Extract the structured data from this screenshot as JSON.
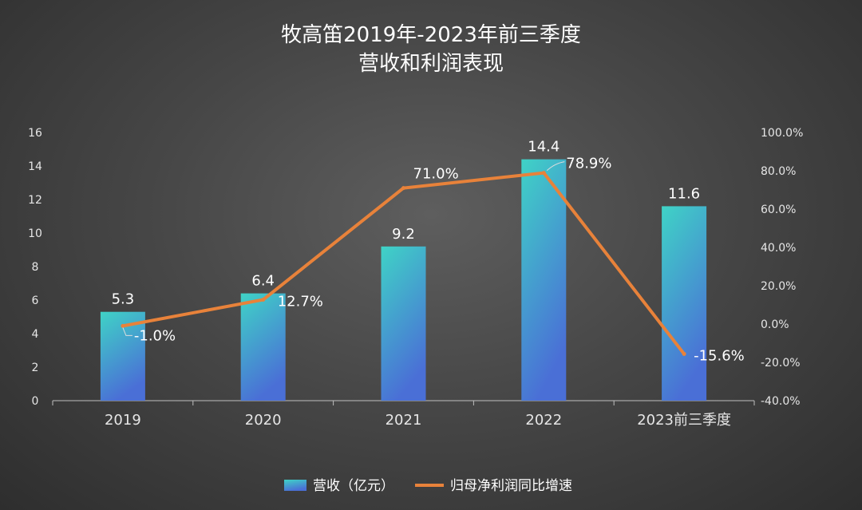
{
  "chart_data": {
    "type": "bar+line",
    "title_line1": "牧高笛2019年-2023年前三季度",
    "title_line2": "营收和利润表现",
    "categories": [
      "2019",
      "2020",
      "2021",
      "2022",
      "2023前三季度"
    ],
    "series": [
      {
        "name": "营收（亿元）",
        "type": "bar",
        "axis": "left",
        "values": [
          5.3,
          6.4,
          9.2,
          14.4,
          11.6
        ],
        "labels": [
          "5.3",
          "6.4",
          "9.2",
          "14.4",
          "11.6"
        ]
      },
      {
        "name": "归母净利润同比增速",
        "type": "line",
        "axis": "right",
        "values": [
          -1.0,
          12.7,
          71.0,
          78.9,
          -15.6
        ],
        "labels": [
          "-1.0%",
          "12.7%",
          "71.0%",
          "78.9%",
          "-15.6%"
        ]
      }
    ],
    "y_left": {
      "min": 0,
      "max": 16,
      "ticks": [
        "0",
        "2",
        "4",
        "6",
        "8",
        "10",
        "12",
        "14",
        "16"
      ]
    },
    "y_right": {
      "min": -40,
      "max": 100,
      "ticks": [
        "-40.0%",
        "-20.0%",
        "0.0%",
        "20.0%",
        "40.0%",
        "60.0%",
        "80.0%",
        "100.0%"
      ]
    },
    "legend_position": "bottom",
    "grid": false,
    "colors": {
      "bar_top": "#3fd3c6",
      "bar_bottom": "#4a6fd6",
      "line": "#e8823a",
      "text": "#ffffff",
      "axis_text": "#e6e6e6",
      "axis_line": "#bfbfbf"
    }
  }
}
